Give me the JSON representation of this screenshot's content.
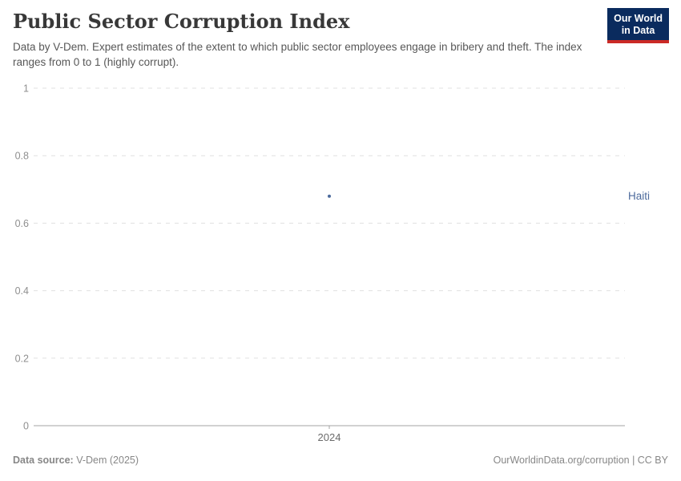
{
  "header": {
    "title": "Public Sector Corruption Index",
    "subtitle": "Data by V-Dem. Expert estimates of the extent to which public sector employees engage in bribery and theft. The index ranges from 0 to 1 (highly corrupt)."
  },
  "logo": {
    "line1": "Our World",
    "line2": "in Data",
    "background_color": "#0a2b5e",
    "underline_color": "#cb2a26"
  },
  "chart_data": {
    "type": "scatter",
    "title": "Public Sector Corruption Index",
    "xlabel": "",
    "ylabel": "",
    "ylim": [
      0,
      1
    ],
    "grid": "horizontal-dashed",
    "legend_position": "right-of-point",
    "series": [
      {
        "name": "Haiti",
        "color": "#4C6A9C",
        "x": [
          2024
        ],
        "values": [
          0.68
        ]
      }
    ],
    "yticks": [
      {
        "value": 0,
        "label": "0"
      },
      {
        "value": 0.2,
        "label": "0.2"
      },
      {
        "value": 0.4,
        "label": "0.4"
      },
      {
        "value": 0.6,
        "label": "0.6"
      },
      {
        "value": 0.8,
        "label": "0.8"
      },
      {
        "value": 1,
        "label": "1"
      }
    ],
    "xticks": [
      {
        "value": 2024,
        "label": "2024"
      }
    ],
    "colors": {
      "grid": "#e0e0e0",
      "axis": "#a3a3a3",
      "ytick_label": "#8f8f8f",
      "xtick_label": "#6b6b6b"
    }
  },
  "footer": {
    "source_label": "Data source:",
    "source_value": "V-Dem (2025)",
    "right_text": "OurWorldinData.org/corruption | CC BY"
  }
}
